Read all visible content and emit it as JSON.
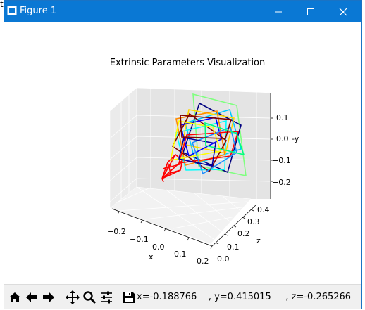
{
  "corner_text": "t",
  "window": {
    "title": "Figure 1",
    "controls": {
      "minimize": "minimize",
      "maximize": "maximize",
      "close": "close"
    }
  },
  "figure": {
    "title": "Extrinsic Parameters Visualization",
    "x_axis": {
      "label": "x",
      "ticks": [
        "−0.2",
        "−0.1",
        "0.0",
        "0.1",
        "0.2"
      ]
    },
    "z_axis": {
      "label": "z",
      "ticks": [
        "0.0",
        "0.1",
        "0.2",
        "0.3",
        "0.4"
      ]
    },
    "y_axis": {
      "label": "-y",
      "ticks": [
        "0.1",
        "0.0",
        "−0.1",
        "−0.2"
      ]
    }
  },
  "toolbar": {
    "coordinates": "x=-0.188766    , y=0.415015     , z=-0.265266",
    "buttons": [
      "home",
      "back",
      "forward",
      "pan",
      "zoom",
      "configure-subplots",
      "save"
    ]
  },
  "colors": {
    "titlebar": "#0a78d4",
    "camera": "#ff0000"
  }
}
